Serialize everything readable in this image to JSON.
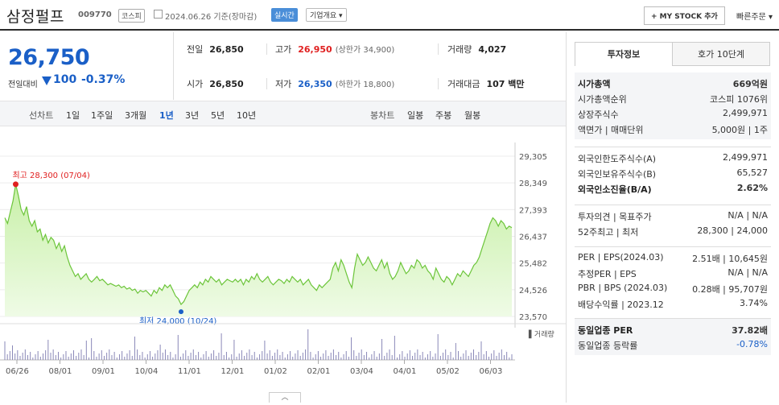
{
  "header": {
    "name": "삼정펄프",
    "code": "009770",
    "market": "코스피",
    "date": "2024.06.26 기준(장마감)",
    "realtime": "실시간",
    "overview": "기업개요 ▾",
    "mystock": "+ MY STOCK 추가",
    "quick_order": "빠른주문 ▾"
  },
  "price": {
    "current": "26,750",
    "prev_label": "전일대비",
    "change": "100",
    "change_pct": "-0.37%"
  },
  "stats": {
    "prev_close": {
      "label": "전일",
      "value": "26,850"
    },
    "high": {
      "label": "고가",
      "value": "26,950",
      "sub": "(상한가 34,900)"
    },
    "volume": {
      "label": "거래량",
      "value": "4,027"
    },
    "open": {
      "label": "시가",
      "value": "26,850"
    },
    "low": {
      "label": "저가",
      "value": "26,350",
      "sub": "(하한가 18,800)"
    },
    "amount": {
      "label": "거래대금",
      "value": "107 백만"
    }
  },
  "periods": {
    "line_label": "선차트",
    "items": [
      "1일",
      "1주일",
      "3개월",
      "1년",
      "3년",
      "5년",
      "10년"
    ],
    "active": "1년",
    "candle_label": "봉차트",
    "candle_items": [
      "일봉",
      "주봉",
      "월봉"
    ]
  },
  "chart_data": {
    "type": "area",
    "y_ticks": [
      "29,305",
      "28,349",
      "27,393",
      "26,437",
      "25,482",
      "24,526",
      "23,570"
    ],
    "ylim": [
      23570,
      29305
    ],
    "x_ticks": [
      "06/26",
      "08/01",
      "09/01",
      "10/04",
      "11/01",
      "12/01",
      "01/02",
      "02/01",
      "03/04",
      "04/01",
      "05/02",
      "06/03"
    ],
    "max_label": "최고 28,300 (07/04)",
    "min_label": "최저 24,000 (10/24)",
    "volume_label": "거래량",
    "values": [
      27100,
      26900,
      27300,
      27700,
      28300,
      27900,
      27400,
      27200,
      27500,
      27000,
      26800,
      27000,
      26600,
      26700,
      26300,
      26500,
      26200,
      26400,
      26300,
      26000,
      26200,
      25900,
      26100,
      25700,
      25400,
      25200,
      25000,
      25100,
      24900,
      25000,
      25100,
      24900,
      24800,
      24900,
      25000,
      24850,
      24900,
      24800,
      24700,
      24750,
      24700,
      24650,
      24700,
      24600,
      24650,
      24550,
      24600,
      24500,
      24550,
      24400,
      24500,
      24450,
      24500,
      24400,
      24300,
      24500,
      24400,
      24600,
      24500,
      24700,
      24600,
      24700,
      24500,
      24300,
      24200,
      24000,
      24100,
      24300,
      24500,
      24600,
      24700,
      24600,
      24800,
      24700,
      24900,
      24800,
      25000,
      24900,
      24800,
      24900,
      24700,
      24800,
      24900,
      24850,
      24800,
      24900,
      24800,
      24900,
      24700,
      24900,
      24800,
      25000,
      24900,
      25100,
      24900,
      24800,
      24900,
      25000,
      24800,
      24700,
      24800,
      24900,
      24850,
      24750,
      24900,
      24800,
      25000,
      24900,
      24800,
      24900,
      24700,
      24800,
      24900,
      24700,
      24600,
      24500,
      24700,
      24600,
      24700,
      24800,
      24900,
      25300,
      25500,
      25200,
      25600,
      25400,
      25100,
      24800,
      24600,
      25300,
      25800,
      25600,
      25400,
      25500,
      25700,
      25500,
      25300,
      25200,
      25400,
      25600,
      25300,
      25500,
      25100,
      24900,
      25000,
      25200,
      25500,
      25300,
      25100,
      25200,
      25400,
      25300,
      25600,
      25500,
      25300,
      25400,
      25200,
      25100,
      24900,
      25300,
      25100,
      24900,
      24800,
      25000,
      24900,
      24700,
      24900,
      25100,
      25000,
      25200,
      25100,
      25000,
      25200,
      25400,
      25500,
      25700,
      26000,
      26300,
      26600,
      26900,
      27100,
      27000,
      26800,
      27000,
      26900,
      26700,
      26800,
      26750
    ]
  },
  "right_panel": {
    "tab_invest": "투자정보",
    "tab_quote": "호가 10단계",
    "block1": [
      {
        "k": "시가총액",
        "v": "669억원",
        "kb": true,
        "vb": true
      },
      {
        "k": "시가총액순위",
        "v": "코스피 1076위"
      },
      {
        "k": "상장주식수",
        "v": "2,499,971"
      },
      {
        "k": "액면가 | 매매단위",
        "v": "5,000원 | 1주"
      }
    ],
    "block2": [
      {
        "k": "외국인한도주식수(A)",
        "v": "2,499,971"
      },
      {
        "k": "외국인보유주식수(B)",
        "v": "65,527"
      },
      {
        "k": "외국인소진율(B/A)",
        "v": "2.62%",
        "kb": true,
        "vb": true
      }
    ],
    "block3": [
      {
        "k": "투자의견 | 목표주가",
        "v": "N/A | N/A"
      },
      {
        "k": "52주최고 | 최저",
        "v": "28,300 | 24,000"
      }
    ],
    "block4": [
      {
        "k": "PER | EPS(2024.03)",
        "v": "2.51배 | 10,645원"
      },
      {
        "k": "추정PER | EPS",
        "v": "N/A | N/A"
      },
      {
        "k": "PBR | BPS (2024.03)",
        "v": "0.28배 | 95,707원"
      },
      {
        "k": "배당수익률 | 2023.12",
        "v": "3.74%"
      }
    ],
    "block5": [
      {
        "k": "동일업종 PER",
        "v": "37.82배",
        "kb": true,
        "vb": true
      },
      {
        "k": "동일업종 등락률",
        "v": "-0.78%",
        "blue": true
      }
    ]
  }
}
